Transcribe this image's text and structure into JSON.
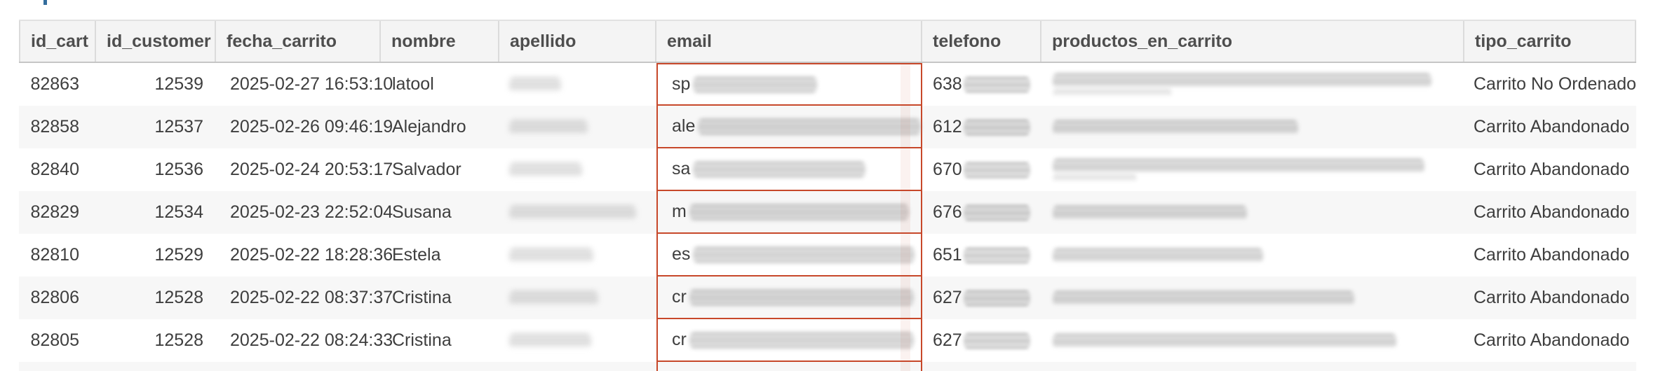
{
  "table": {
    "columns": [
      {
        "key": "id_cart",
        "label": "id_cart"
      },
      {
        "key": "id_customer",
        "label": "id_customer"
      },
      {
        "key": "fecha_carrito",
        "label": "fecha_carrito"
      },
      {
        "key": "nombre",
        "label": "nombre"
      },
      {
        "key": "apellido",
        "label": "apellido"
      },
      {
        "key": "email",
        "label": "email"
      },
      {
        "key": "telefono",
        "label": "telefono"
      },
      {
        "key": "productos_en_carrito",
        "label": "productos_en_carrito"
      },
      {
        "key": "tipo_carrito",
        "label": "tipo_carrito"
      }
    ],
    "rows": [
      {
        "id_cart": "82863",
        "id_customer": "12539",
        "fecha_carrito": "2025-02-27 16:53:10",
        "nombre": "latool",
        "apellido_w": 74,
        "apellido_light": true,
        "email_prefix": "sp",
        "email_w": 177,
        "telefono_prefix": "638",
        "telefono_w": 95,
        "productos_w": 540,
        "productos_w2": 170,
        "tipo_carrito": "Carrito No Ordenado"
      },
      {
        "id_cart": "82858",
        "id_customer": "12537",
        "fecha_carrito": "2025-02-26 09:46:19",
        "nombre": "Alejandro",
        "apellido_w": 112,
        "apellido_light": false,
        "email_prefix": "ale",
        "email_w": 318,
        "telefono_prefix": "612",
        "telefono_w": 95,
        "productos_w": 350,
        "productos_w2": 0,
        "tipo_carrito": "Carrito Abandonado"
      },
      {
        "id_cart": "82840",
        "id_customer": "12536",
        "fecha_carrito": "2025-02-24 20:53:17",
        "nombre": "Salvador",
        "apellido_w": 104,
        "apellido_light": false,
        "email_prefix": "sa",
        "email_w": 246,
        "telefono_prefix": "670",
        "telefono_w": 95,
        "productos_w": 530,
        "productos_w2": 120,
        "tipo_carrito": "Carrito Abandonado"
      },
      {
        "id_cart": "82829",
        "id_customer": "12534",
        "fecha_carrito": "2025-02-23 22:52:04",
        "nombre": "Susana",
        "apellido_w": 181,
        "apellido_light": false,
        "email_prefix": "m",
        "email_w": 313,
        "telefono_prefix": "676",
        "telefono_w": 95,
        "productos_w": 277,
        "productos_w2": 0,
        "tipo_carrito": "Carrito Abandonado"
      },
      {
        "id_cart": "82810",
        "id_customer": "12529",
        "fecha_carrito": "2025-02-22 18:28:36",
        "nombre": "Estela",
        "apellido_w": 120,
        "apellido_light": false,
        "email_prefix": "es",
        "email_w": 316,
        "telefono_prefix": "651",
        "telefono_w": 95,
        "productos_w": 300,
        "productos_w2": 0,
        "tipo_carrito": "Carrito Abandonado"
      },
      {
        "id_cart": "82806",
        "id_customer": "12528",
        "fecha_carrito": "2025-02-22 08:37:37",
        "nombre": "Cristina",
        "apellido_w": 127,
        "apellido_light": false,
        "email_prefix": "cr",
        "email_w": 320,
        "telefono_prefix": "627",
        "telefono_w": 95,
        "productos_w": 430,
        "productos_w2": 0,
        "tipo_carrito": "Carrito Abandonado"
      },
      {
        "id_cart": "82805",
        "id_customer": "12528",
        "fecha_carrito": "2025-02-22 08:24:33",
        "nombre": "Cristina",
        "apellido_w": 117,
        "apellido_light": false,
        "email_prefix": "cr",
        "email_w": 320,
        "telefono_prefix": "627",
        "telefono_w": 95,
        "productos_w": 490,
        "productos_w2": 0,
        "tipo_carrito": "Carrito Abandonado"
      }
    ],
    "partial_bottom_row_visible": true
  },
  "colors": {
    "highlight_border": "#c7482a",
    "header_bg": "#f4f4f4",
    "alt_row_bg": "#f7f7f7",
    "header_text": "#4e4e4e",
    "body_text": "#3e3e3e",
    "artifact_blue": "#336d9d"
  }
}
